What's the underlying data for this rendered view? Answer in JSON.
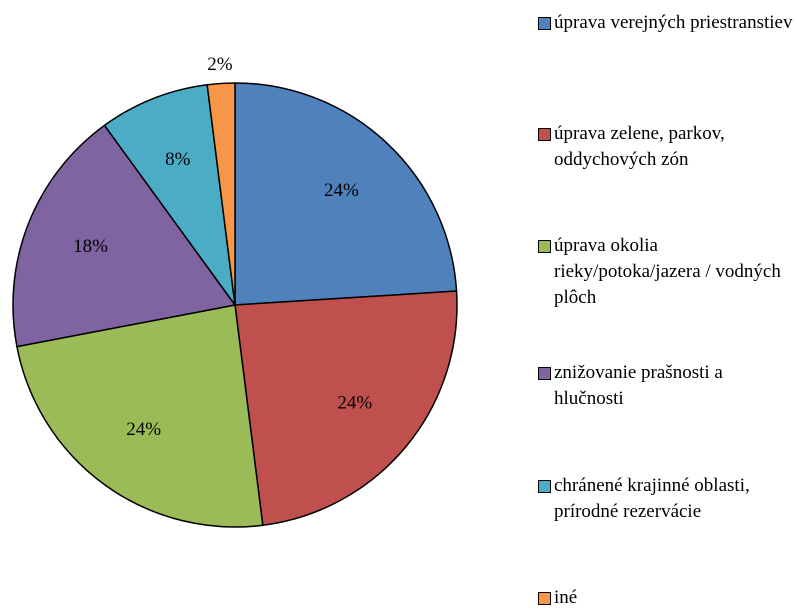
{
  "chart_data": {
    "type": "pie",
    "categories": [
      "úprava verejných priestranstiev",
      "úprava zelene, parkov, oddychových zón",
      "úprava okolia rieky/potoka/jazera / vodných plôch",
      "znižovanie prašnosti a hlučnosti",
      "chránené krajinné oblasti, prírodné rezervácie",
      "iné"
    ],
    "values": [
      24,
      24,
      24,
      18,
      8,
      2
    ],
    "value_labels": [
      "24%",
      "24%",
      "24%",
      "18%",
      "8%",
      "2%"
    ],
    "colors": [
      "#4F81BD",
      "#C0504D",
      "#9BBB59",
      "#8064A2",
      "#4BACC6",
      "#F79646"
    ],
    "legend": "right"
  }
}
